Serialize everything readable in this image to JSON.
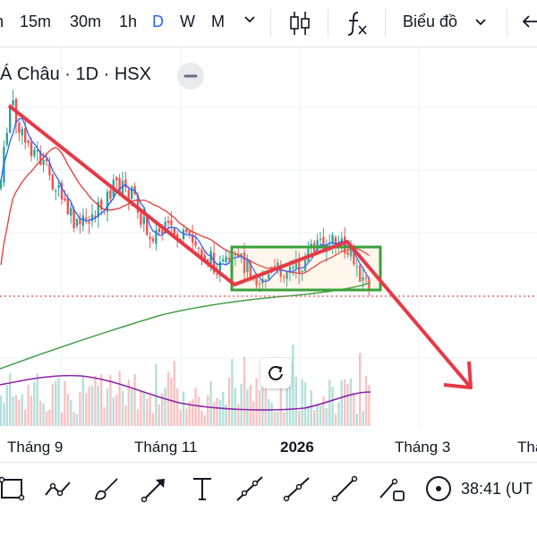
{
  "toolbar": {
    "timeframes": [
      {
        "label": "h",
        "active": false
      },
      {
        "label": "15m",
        "active": false
      },
      {
        "label": "30m",
        "active": false
      },
      {
        "label": "1h",
        "active": false
      },
      {
        "label": "D",
        "active": true
      },
      {
        "label": "W",
        "active": false
      },
      {
        "label": "M",
        "active": false
      }
    ],
    "chart_type_label": "Biểu đồ",
    "icons": [
      "chevron-down-icon",
      "candles-icon",
      "indicators-fx-icon",
      "back-arrow-icon"
    ]
  },
  "symbol_title": "Á Châu · 1D · HSX",
  "time_axis": [
    "Tháng 9",
    "Tháng 11",
    "2026",
    "Tháng 3",
    "Thá"
  ],
  "clock": "38:41 (UT",
  "drawing_tools": [
    "rectangle-icon",
    "polyline-icon",
    "brush-icon",
    "arrow-icon",
    "text-icon",
    "trend-line-icon",
    "ray-icon",
    "extended-line-icon",
    "info-line-icon",
    "target-icon"
  ],
  "colors": {
    "accent": "#2962ff",
    "up": "#26a69a",
    "down": "#ef5350",
    "ma_fast": "#2962ff",
    "ma_mid": "#e53935",
    "ma_slow": "#43a047",
    "volume_ma": "#8e24aa",
    "annotation": "#e63946",
    "box": "#3aa03a"
  }
}
